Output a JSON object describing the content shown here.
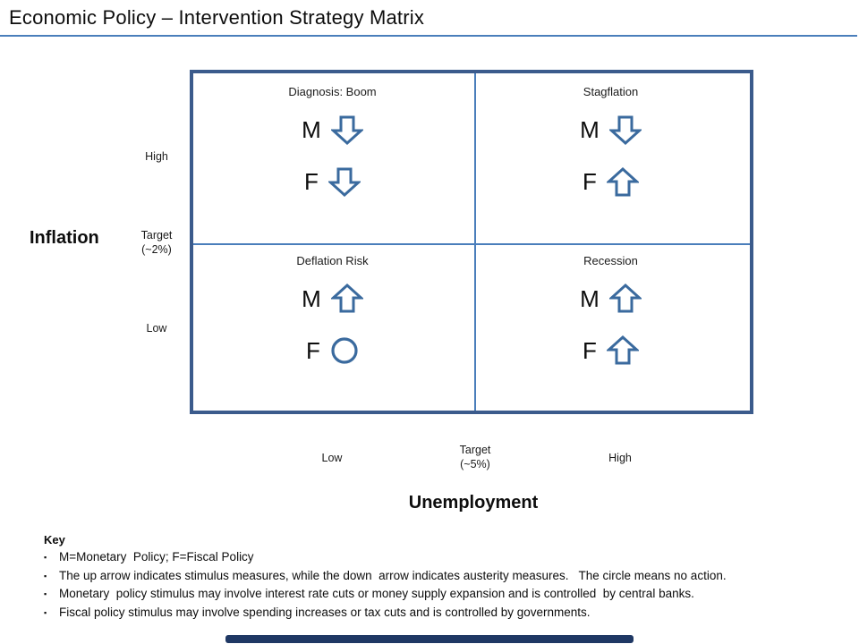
{
  "title": "Economic Policy – Intervention Strategy Matrix",
  "colors": {
    "title_underline": "#4a7ebb",
    "matrix_border": "#3b5b8c",
    "matrix_divider": "#4a7ebb",
    "symbol_stroke": "#3a6a9e",
    "footer_bar": "#1f3864",
    "text": "#0d0d0d"
  },
  "y_axis": {
    "label": "Inflation",
    "high": "High",
    "target_line1": "Target",
    "target_line2": "(~2%)",
    "low": "Low"
  },
  "x_axis": {
    "label": "Unemployment",
    "low": "Low",
    "target_line1": "Target",
    "target_line2": "(~5%)",
    "high": "High"
  },
  "quadrants": [
    {
      "id": "boom",
      "title": "Diagnosis: Boom",
      "monetary": {
        "label": "M",
        "symbol": "down-arrow"
      },
      "fiscal": {
        "label": "F",
        "symbol": "down-arrow"
      }
    },
    {
      "id": "stagflation",
      "title": "Stagflation",
      "monetary": {
        "label": "M",
        "symbol": "down-arrow"
      },
      "fiscal": {
        "label": "F",
        "symbol": "up-arrow"
      }
    },
    {
      "id": "deflation-risk",
      "title": "Deflation Risk",
      "monetary": {
        "label": "M",
        "symbol": "up-arrow"
      },
      "fiscal": {
        "label": "F",
        "symbol": "circle"
      }
    },
    {
      "id": "recession",
      "title": "Recession",
      "monetary": {
        "label": "M",
        "symbol": "up-arrow"
      },
      "fiscal": {
        "label": "F",
        "symbol": "up-arrow"
      }
    }
  ],
  "key": {
    "heading": "Key",
    "bullets": [
      "M=Monetary  Policy; F=Fiscal Policy",
      "The up arrow indicates stimulus measures, while the down  arrow indicates austerity measures.   The circle means no action.",
      "Monetary  policy stimulus may involve interest rate cuts or money supply expansion and is controlled  by central banks.",
      "Fiscal policy stimulus may involve spending increases or tax cuts and is controlled by governments."
    ]
  }
}
